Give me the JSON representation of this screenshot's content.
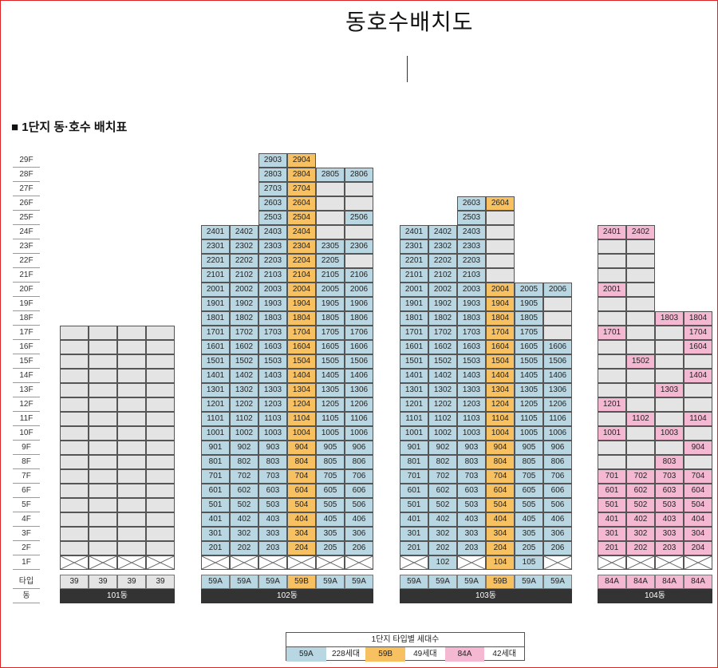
{
  "title": "동호수배치도",
  "section_title": "■ 1단지 동·호수 배치표",
  "floors": [
    "29F",
    "28F",
    "27F",
    "26F",
    "25F",
    "24F",
    "23F",
    "22F",
    "21F",
    "20F",
    "19F",
    "18F",
    "17F",
    "16F",
    "15F",
    "14F",
    "13F",
    "12F",
    "11F",
    "10F",
    "9F",
    "8F",
    "7F",
    "6F",
    "5F",
    "4F",
    "3F",
    "2F",
    "1F"
  ],
  "row_labels": {
    "type": "타입",
    "building": "동"
  },
  "buildings": [
    {
      "name": "101동",
      "types": [
        "39",
        "39",
        "39",
        "39"
      ],
      "columns": [
        {
          "type": "39",
          "top": 17,
          "units": {}
        },
        {
          "type": "39",
          "top": 17,
          "units": {}
        },
        {
          "type": "39",
          "top": 17,
          "units": {}
        },
        {
          "type": "39",
          "top": 17,
          "units": {}
        }
      ],
      "pilotis": [
        true,
        true,
        true,
        true
      ]
    },
    {
      "name": "102동",
      "types": [
        "59A",
        "59A",
        "59A",
        "59B",
        "59A",
        "59A"
      ],
      "columns": [
        {
          "type": "59A",
          "top": 24
        },
        {
          "type": "59A",
          "top": 24
        },
        {
          "type": "59A",
          "top": 29
        },
        {
          "type": "59B",
          "top": 29
        },
        {
          "type": "59A",
          "top": 28
        },
        {
          "type": "59A",
          "top": 28
        }
      ],
      "empty_cells": [
        [
          4,
          27
        ],
        [
          4,
          26
        ],
        [
          4,
          25
        ],
        [
          5,
          27
        ],
        [
          5,
          26
        ],
        [
          4,
          24
        ],
        [
          5,
          24
        ],
        [
          5,
          22
        ]
      ],
      "missing_labels": {
        "4": [
          27,
          26,
          25,
          24
        ],
        "5": [
          27,
          26,
          24,
          22,
          21
        ]
      },
      "pilotis": [
        true,
        true,
        true,
        true,
        true,
        true
      ]
    },
    {
      "name": "103동",
      "types": [
        "59A",
        "59A",
        "59A",
        "59B",
        "59A",
        "59A"
      ],
      "columns": [
        {
          "type": "59A",
          "top": 24
        },
        {
          "type": "59A",
          "top": 24
        },
        {
          "type": "59A",
          "top": 26
        },
        {
          "type": "59B",
          "top": 26
        },
        {
          "type": "59A",
          "top": 20
        },
        {
          "type": "59A",
          "top": 20
        }
      ],
      "pilotis": [
        true,
        false,
        true,
        false,
        false,
        true
      ]
    },
    {
      "name": "104동",
      "types": [
        "84A",
        "84A",
        "84A",
        "84A"
      ],
      "columns": [
        {
          "type": "84A",
          "top": 24
        },
        {
          "type": "84A",
          "top": 24
        },
        {
          "type": "84A",
          "top": 18
        },
        {
          "type": "84A",
          "top": 18
        }
      ],
      "pilotis": [
        true,
        true,
        true,
        true
      ]
    }
  ],
  "units_102_labels": {
    "c0": [
      "2401",
      "2301",
      "2201",
      "2101",
      "2001",
      "1901",
      "1801",
      "1701",
      "1601",
      "1501",
      "1401",
      "1301",
      "1201",
      "1101",
      "1001",
      "901",
      "801",
      "701",
      "601",
      "501",
      "401",
      "301",
      "201"
    ],
    "c1": [
      "2402",
      "2302",
      "2202",
      "2102",
      "2002",
      "1902",
      "1802",
      "1702",
      "1602",
      "1502",
      "1402",
      "1302",
      "1202",
      "1102",
      "1002",
      "902",
      "802",
      "702",
      "602",
      "502",
      "402",
      "302",
      "202"
    ],
    "c2": [
      "2903",
      "2803",
      "2703",
      "2603",
      "2503",
      "2403",
      "2303",
      "2203",
      "2103",
      "2003",
      "1903",
      "1803",
      "1703",
      "1603",
      "1503",
      "1403",
      "1303",
      "1203",
      "1103",
      "1003",
      "903",
      "803",
      "703",
      "603",
      "503",
      "403",
      "303",
      "203"
    ],
    "c3": [
      "2904",
      "2804",
      "2704",
      "2604",
      "2504",
      "2404",
      "2304",
      "2204",
      "2104",
      "2004",
      "1904",
      "1804",
      "1704",
      "1604",
      "1504",
      "1404",
      "1304",
      "1204",
      "1104",
      "1004",
      "904",
      "804",
      "704",
      "604",
      "504",
      "404",
      "304",
      "204"
    ],
    "c4": [
      "2805",
      "",
      "",
      "",
      "",
      "2305",
      "2205",
      "2105",
      "2005",
      "1905",
      "1805",
      "1705",
      "1605",
      "1505",
      "1405",
      "1305",
      "1205",
      "1105",
      "1005",
      "905",
      "805",
      "705",
      "605",
      "505",
      "405",
      "305",
      "205"
    ],
    "c5": [
      "2806",
      "",
      "",
      "2506",
      "",
      "2306",
      "",
      "2106",
      "2006",
      "1906",
      "1806",
      "1706",
      "1606",
      "1506",
      "1406",
      "1306",
      "1206",
      "1106",
      "1006",
      "906",
      "806",
      "706",
      "606",
      "506",
      "406",
      "306",
      "206"
    ]
  },
  "units_103_labels": {
    "c0": [
      "2401",
      "2301",
      "2201",
      "2101",
      "2001",
      "1901",
      "1801",
      "1701",
      "1601",
      "1501",
      "1401",
      "1301",
      "1201",
      "1101",
      "1001",
      "901",
      "801",
      "701",
      "601",
      "501",
      "401",
      "301",
      "201"
    ],
    "c1": [
      "2402",
      "2302",
      "2202",
      "2102",
      "2002",
      "1902",
      "1802",
      "1702",
      "1602",
      "1502",
      "1402",
      "1302",
      "1202",
      "1102",
      "1002",
      "902",
      "802",
      "702",
      "602",
      "502",
      "402",
      "302",
      "202",
      "102"
    ],
    "c2": [
      "2603",
      "2503",
      "2403",
      "2303",
      "2203",
      "2103",
      "2003",
      "1903",
      "1803",
      "1703",
      "1603",
      "1503",
      "1403",
      "1303",
      "1203",
      "1103",
      "1003",
      "903",
      "803",
      "703",
      "603",
      "503",
      "403",
      "303",
      "203"
    ],
    "c3": [
      "2604",
      "",
      "",
      "",
      "",
      "",
      "2004",
      "1904",
      "1804",
      "1704",
      "1604",
      "1504",
      "1404",
      "1304",
      "1204",
      "1104",
      "1004",
      "904",
      "804",
      "704",
      "604",
      "504",
      "404",
      "304",
      "204",
      "104"
    ],
    "c4": [
      "2005",
      "1905",
      "1805",
      "1705",
      "1605",
      "1505",
      "1405",
      "1305",
      "1205",
      "1105",
      "1005",
      "905",
      "805",
      "705",
      "605",
      "505",
      "405",
      "305",
      "205",
      "105"
    ],
    "c5": [
      "2006",
      "",
      "",
      "",
      "1606",
      "1506",
      "1406",
      "1306",
      "1206",
      "1106",
      "1006",
      "906",
      "806",
      "706",
      "606",
      "506",
      "406",
      "306",
      "206"
    ]
  },
  "units_104_labels": {
    "c0": [
      "2401",
      "",
      "",
      "",
      "2001",
      "",
      "",
      "1701",
      "",
      "",
      "",
      "",
      "1201",
      "",
      "1001",
      "",
      "",
      "701",
      "601",
      "501",
      "401",
      "301",
      "201"
    ],
    "c1": [
      "2402",
      "",
      "",
      "",
      "",
      "",
      "",
      "",
      "",
      "1502",
      "",
      "",
      "",
      "1102",
      "",
      "",
      "",
      "702",
      "602",
      "502",
      "402",
      "302",
      "202"
    ],
    "c2": [
      "1803",
      "",
      "",
      "",
      "",
      "1303",
      "",
      "",
      "1003",
      "",
      "803",
      "703",
      "603",
      "503",
      "403",
      "303",
      "203"
    ],
    "c3": [
      "1804",
      "1704",
      "1604",
      "",
      "1404",
      "",
      "",
      "1104",
      "",
      "904",
      "",
      "704",
      "604",
      "504",
      "404",
      "304",
      "204"
    ]
  },
  "legend": {
    "title": "1단지 타입별 세대수",
    "items": [
      {
        "type": "59A",
        "count": "228세대",
        "color": "#b9d7e3"
      },
      {
        "type": "59B",
        "count": "49세대",
        "color": "#f7c061"
      },
      {
        "type": "84A",
        "count": "42세대",
        "color": "#f5b8d2"
      }
    ]
  },
  "colors": {
    "59A": "#b9d7e3",
    "59B": "#f7c061",
    "84A": "#f5b8d2",
    "empty": "#e4e4e4",
    "frame": "#dd2222"
  }
}
